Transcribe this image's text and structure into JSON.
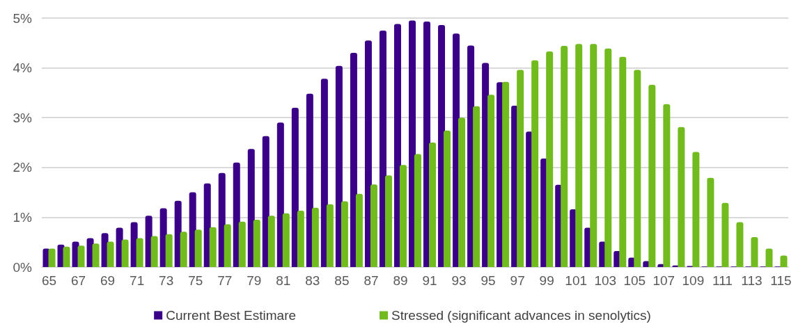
{
  "chart_data": {
    "type": "bar",
    "categories": [
      "65",
      null,
      "67",
      null,
      "69",
      null,
      "71",
      null,
      "73",
      null,
      "75",
      null,
      "77",
      null,
      "79",
      null,
      "81",
      null,
      "83",
      null,
      "85",
      null,
      "87",
      null,
      "89",
      null,
      "91",
      null,
      "93",
      null,
      "95",
      null,
      "97",
      null,
      "99",
      null,
      "101",
      null,
      "103",
      null,
      "105",
      null,
      "107",
      null,
      "109",
      null,
      "111",
      null,
      "113",
      null,
      "115"
    ],
    "series": [
      {
        "name": "Current Best Estimare",
        "color": "#3a0087",
        "values": [
          0.37,
          0.45,
          0.51,
          0.58,
          0.68,
          0.79,
          0.9,
          1.03,
          1.18,
          1.33,
          1.5,
          1.68,
          1.89,
          2.1,
          2.37,
          2.63,
          2.9,
          3.2,
          3.48,
          3.78,
          4.04,
          4.3,
          4.55,
          4.75,
          4.88,
          4.95,
          4.93,
          4.86,
          4.69,
          4.45,
          4.1,
          3.71,
          3.24,
          2.72,
          2.18,
          1.65,
          1.16,
          0.79,
          0.51,
          0.32,
          0.19,
          0.12,
          0.06,
          0.03,
          0.02,
          0.01,
          0.01,
          0.01,
          0.01,
          0.01,
          0.01
        ]
      },
      {
        "name": "Stressed (significant advances in senolytics)",
        "color": "#72bb1f",
        "values": [
          0.37,
          0.41,
          0.43,
          0.47,
          0.51,
          0.55,
          0.58,
          0.62,
          0.66,
          0.71,
          0.75,
          0.8,
          0.86,
          0.91,
          0.95,
          1.03,
          1.08,
          1.13,
          1.19,
          1.26,
          1.32,
          1.47,
          1.66,
          1.84,
          2.05,
          2.27,
          2.5,
          2.74,
          3.0,
          3.23,
          3.46,
          3.72,
          3.96,
          4.15,
          4.33,
          4.44,
          4.48,
          4.48,
          4.39,
          4.22,
          3.96,
          3.66,
          3.27,
          2.81,
          2.31,
          1.79,
          1.29,
          0.9,
          0.6,
          0.37,
          0.23
        ]
      }
    ],
    "ylim": [
      0,
      5
    ],
    "yticks": [
      {
        "value": 0,
        "label": "0%"
      },
      {
        "value": 1,
        "label": "1%"
      },
      {
        "value": 2,
        "label": "2%"
      },
      {
        "value": 3,
        "label": "3%"
      },
      {
        "value": 4,
        "label": "4%"
      },
      {
        "value": 5,
        "label": "5%"
      }
    ],
    "grid": "y",
    "legend": "bottom"
  }
}
